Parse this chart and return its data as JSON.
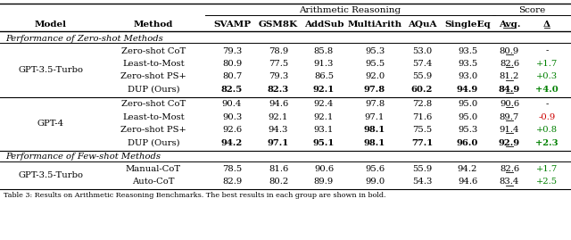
{
  "title_arithmetic": "Arithmetic Reasoning",
  "title_score": "Score",
  "section1_label": "Performance of Zero-shot Methods",
  "section2_label": "Performance of Few-shot Methods",
  "caption": "Table 3: Results on Arithmetic Reasoning Benchmarks. The best results in each group are shown in bold.",
  "col_headers_row1": [
    "SVAMP",
    "GSM8K",
    "AddSub",
    "MultiArith",
    "AQuA",
    "SingleEq"
  ],
  "col_headers_avg": "Avg.",
  "col_headers_delta": "Δ",
  "groups": [
    {
      "model": "GPT-3.5-Turbo",
      "rows": [
        {
          "method": "Zero-shot CoT",
          "vals": [
            "79.3",
            "78.9",
            "85.8",
            "95.3",
            "53.0",
            "93.5"
          ],
          "bold_vals": [
            false,
            false,
            false,
            false,
            false,
            false
          ],
          "avg": "80.9",
          "delta": "-",
          "bold_avg": false,
          "delta_color": "#000000"
        },
        {
          "method": "Least-to-Most",
          "vals": [
            "80.9",
            "77.5",
            "91.3",
            "95.5",
            "57.4",
            "93.5"
          ],
          "bold_vals": [
            false,
            false,
            false,
            false,
            false,
            false
          ],
          "avg": "82.6",
          "delta": "+1.7",
          "bold_avg": false,
          "delta_color": "#008000"
        },
        {
          "method": "Zero-shot PS+",
          "vals": [
            "80.7",
            "79.3",
            "86.5",
            "92.0",
            "55.9",
            "93.0"
          ],
          "bold_vals": [
            false,
            false,
            false,
            false,
            false,
            false
          ],
          "avg": "81.2",
          "delta": "+0.3",
          "bold_avg": false,
          "delta_color": "#008000"
        },
        {
          "method": "DUP (Ours)",
          "vals": [
            "82.5",
            "82.3",
            "92.1",
            "97.8",
            "60.2",
            "94.9"
          ],
          "bold_vals": [
            true,
            true,
            true,
            true,
            true,
            true
          ],
          "avg": "84.9",
          "delta": "+4.0",
          "bold_avg": true,
          "delta_color": "#008000"
        }
      ]
    },
    {
      "model": "GPT-4",
      "rows": [
        {
          "method": "Zero-shot CoT",
          "vals": [
            "90.4",
            "94.6",
            "92.4",
            "97.8",
            "72.8",
            "95.0"
          ],
          "bold_vals": [
            false,
            false,
            false,
            false,
            false,
            false
          ],
          "avg": "90.6",
          "delta": "-",
          "bold_avg": false,
          "delta_color": "#000000"
        },
        {
          "method": "Least-to-Most",
          "vals": [
            "90.3",
            "92.1",
            "92.1",
            "97.1",
            "71.6",
            "95.0"
          ],
          "bold_vals": [
            false,
            false,
            false,
            false,
            false,
            false
          ],
          "avg": "89.7",
          "delta": "-0.9",
          "bold_avg": false,
          "delta_color": "#cc0000"
        },
        {
          "method": "Zero-shot PS+",
          "vals": [
            "92.6",
            "94.3",
            "93.1",
            "98.1",
            "75.5",
            "95.3"
          ],
          "bold_vals": [
            false,
            false,
            false,
            true,
            false,
            false
          ],
          "avg": "91.4",
          "delta": "+0.8",
          "bold_avg": false,
          "delta_color": "#008000"
        },
        {
          "method": "DUP (Ours)",
          "vals": [
            "94.2",
            "97.1",
            "95.1",
            "98.1",
            "77.1",
            "96.0"
          ],
          "bold_vals": [
            true,
            true,
            true,
            true,
            true,
            true
          ],
          "avg": "92.9",
          "delta": "+2.3",
          "bold_avg": true,
          "delta_color": "#008000"
        }
      ]
    },
    {
      "model": "GPT-3.5-Turbo",
      "rows": [
        {
          "method": "Manual-CoT",
          "vals": [
            "78.5",
            "81.6",
            "90.6",
            "95.6",
            "55.9",
            "94.2"
          ],
          "bold_vals": [
            false,
            false,
            false,
            false,
            false,
            false
          ],
          "avg": "82.6",
          "delta": "+1.7",
          "bold_avg": false,
          "delta_color": "#008000"
        },
        {
          "method": "Auto-CoT",
          "vals": [
            "82.9",
            "80.2",
            "89.9",
            "99.0",
            "54.3",
            "94.6"
          ],
          "bold_vals": [
            false,
            false,
            false,
            false,
            false,
            false
          ],
          "avg": "83.4",
          "delta": "+2.5",
          "bold_avg": false,
          "delta_color": "#008000"
        }
      ]
    }
  ],
  "figw": 6.4,
  "figh": 2.69,
  "dpi": 100
}
